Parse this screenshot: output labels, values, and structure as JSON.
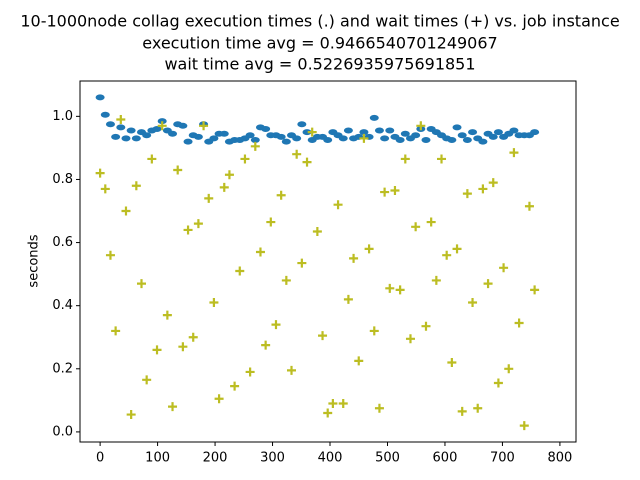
{
  "chart_data": {
    "type": "scatter",
    "title": [
      "10-1000node collag execution times (.) and wait times (+) vs. job instance",
      "execution time avg = 0.9466540701249067",
      "wait time avg = 0.5226935975691851"
    ],
    "ylabel": "seconds",
    "x": [
      0,
      9,
      18,
      27,
      36,
      45,
      54,
      63,
      72,
      81,
      90,
      99,
      108,
      117,
      126,
      135,
      144,
      153,
      162,
      171,
      180,
      189,
      198,
      207,
      216,
      225,
      234,
      243,
      252,
      261,
      270,
      279,
      288,
      297,
      306,
      315,
      324,
      333,
      342,
      351,
      360,
      369,
      378,
      387,
      396,
      405,
      414,
      423,
      432,
      441,
      450,
      459,
      468,
      477,
      486,
      495,
      504,
      513,
      522,
      531,
      540,
      549,
      558,
      567,
      576,
      585,
      594,
      603,
      612,
      621,
      630,
      639,
      648,
      657,
      666,
      675,
      684,
      693,
      702,
      711,
      720,
      729,
      738,
      747,
      756
    ],
    "series": [
      {
        "marker": "dot",
        "color": "#1f77b4",
        "values": [
          1.06,
          1.005,
          0.975,
          0.935,
          0.965,
          0.93,
          0.955,
          0.93,
          0.95,
          0.94,
          0.955,
          0.96,
          0.985,
          0.955,
          0.945,
          0.975,
          0.97,
          0.92,
          0.94,
          0.935,
          0.975,
          0.92,
          0.93,
          0.945,
          0.945,
          0.92,
          0.925,
          0.925,
          0.93,
          0.94,
          0.925,
          0.965,
          0.96,
          0.94,
          0.94,
          0.935,
          0.92,
          0.94,
          0.93,
          0.975,
          0.95,
          0.925,
          0.935,
          0.935,
          0.925,
          0.95,
          0.94,
          0.93,
          0.955,
          0.93,
          0.935,
          0.95,
          0.935,
          0.995,
          0.955,
          0.93,
          0.955,
          0.935,
          0.925,
          0.945,
          0.93,
          0.94,
          0.96,
          0.925,
          0.96,
          0.95,
          0.94,
          0.93,
          0.925,
          0.965,
          0.94,
          0.925,
          0.95,
          0.93,
          0.92,
          0.945,
          0.935,
          0.95,
          0.935,
          0.945,
          0.955,
          0.94,
          0.94,
          0.94,
          0.95
        ]
      },
      {
        "marker": "plus",
        "color": "#bcbd22",
        "values": [
          0.82,
          0.77,
          0.56,
          0.32,
          0.99,
          0.7,
          0.055,
          0.78,
          0.47,
          0.165,
          0.865,
          0.26,
          0.97,
          0.37,
          0.08,
          0.83,
          0.27,
          0.64,
          0.3,
          0.66,
          0.97,
          0.74,
          0.41,
          0.105,
          0.775,
          0.815,
          0.145,
          0.51,
          0.865,
          0.19,
          0.905,
          0.57,
          0.275,
          0.665,
          0.34,
          0.75,
          0.48,
          0.195,
          0.88,
          0.535,
          0.855,
          0.95,
          0.635,
          0.305,
          0.06,
          0.09,
          0.72,
          0.09,
          0.42,
          0.55,
          0.225,
          0.93,
          0.58,
          0.32,
          0.075,
          0.76,
          0.455,
          0.765,
          0.45,
          0.865,
          0.295,
          0.65,
          0.97,
          0.335,
          0.665,
          0.48,
          0.865,
          0.56,
          0.22,
          0.58,
          0.065,
          0.755,
          0.41,
          0.075,
          0.77,
          0.47,
          0.79,
          0.155,
          0.52,
          0.2,
          0.885,
          0.345,
          0.02,
          0.715,
          0.45
        ]
      }
    ],
    "xlim": [
      -35,
      828
    ],
    "xticks": [
      0,
      100,
      200,
      300,
      400,
      500,
      600,
      700,
      800
    ],
    "ylim": [
      -0.032,
      1.112
    ],
    "yticks": [
      {
        "value": 0,
        "label": "0.0"
      },
      0.2,
      0.4,
      0.6,
      0.8,
      {
        "value": 1,
        "label": "1.0"
      }
    ]
  }
}
